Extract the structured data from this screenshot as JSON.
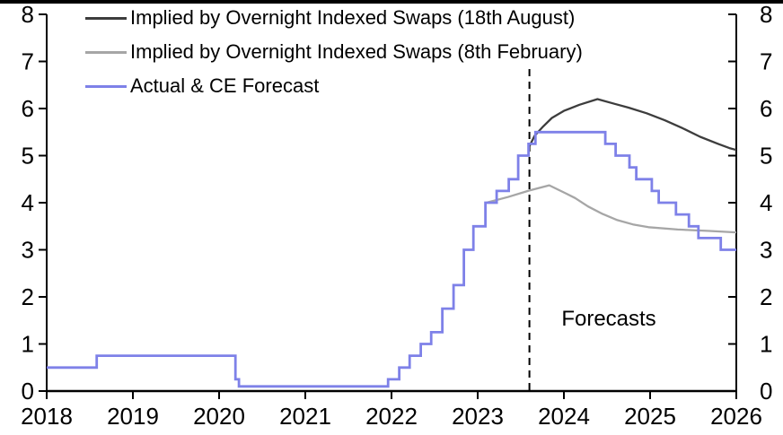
{
  "chart_data": {
    "type": "line",
    "title": "",
    "xlabel": "",
    "ylabel": "",
    "xlim": [
      2018,
      2026
    ],
    "ylim": [
      0,
      8
    ],
    "x_ticks": [
      2018,
      2019,
      2020,
      2021,
      2022,
      2023,
      2024,
      2025,
      2026
    ],
    "y_ticks": [
      0,
      1,
      2,
      3,
      4,
      5,
      6,
      7,
      8
    ],
    "y_axis_sides": "both",
    "grid": false,
    "legend_position": "top-left",
    "axis_color": "#000000",
    "background_color": "#ffffff",
    "annotations": {
      "forecast_label": "Forecasts",
      "forecast_divider_x": 2023.6
    },
    "series": [
      {
        "id": "ois-18-august",
        "name": "Implied by Overnight Indexed Swaps (18th August)",
        "color": "#3d3d3d",
        "line_style": "line",
        "points": [
          [
            2023.6,
            5.2
          ],
          [
            2023.66,
            5.42
          ],
          [
            2023.76,
            5.62
          ],
          [
            2023.86,
            5.8
          ],
          [
            2024.0,
            5.95
          ],
          [
            2024.18,
            6.08
          ],
          [
            2024.39,
            6.2
          ],
          [
            2024.59,
            6.1
          ],
          [
            2024.75,
            6.02
          ],
          [
            2024.96,
            5.9
          ],
          [
            2025.17,
            5.75
          ],
          [
            2025.38,
            5.58
          ],
          [
            2025.58,
            5.4
          ],
          [
            2025.79,
            5.25
          ],
          [
            2025.92,
            5.16
          ],
          [
            2026.0,
            5.12
          ]
        ]
      },
      {
        "id": "ois-8-february",
        "name": "Implied by Overnight Indexed Swaps (8th February)",
        "color": "#a6a6a6",
        "line_style": "line",
        "points": [
          [
            2023.1,
            4.0
          ],
          [
            2023.35,
            4.12
          ],
          [
            2023.6,
            4.26
          ],
          [
            2023.83,
            4.37
          ],
          [
            2024.02,
            4.2
          ],
          [
            2024.13,
            4.1
          ],
          [
            2024.28,
            3.92
          ],
          [
            2024.45,
            3.76
          ],
          [
            2024.62,
            3.63
          ],
          [
            2024.8,
            3.54
          ],
          [
            2024.98,
            3.48
          ],
          [
            2025.32,
            3.43
          ],
          [
            2025.69,
            3.4
          ],
          [
            2026.0,
            3.37
          ]
        ]
      },
      {
        "id": "actual-ce-forecast",
        "name": "Actual & CE Forecast",
        "color": "#7e81e8",
        "line_style": "step",
        "points": [
          [
            2018.0,
            0.5
          ],
          [
            2018.58,
            0.75
          ],
          [
            2020.19,
            0.25
          ],
          [
            2020.23,
            0.1
          ],
          [
            2021.96,
            0.25
          ],
          [
            2022.09,
            0.5
          ],
          [
            2022.21,
            0.75
          ],
          [
            2022.34,
            1.0
          ],
          [
            2022.46,
            1.25
          ],
          [
            2022.59,
            1.75
          ],
          [
            2022.72,
            2.25
          ],
          [
            2022.84,
            3.0
          ],
          [
            2022.95,
            3.5
          ],
          [
            2023.09,
            4.0
          ],
          [
            2023.22,
            4.25
          ],
          [
            2023.36,
            4.5
          ],
          [
            2023.47,
            5.0
          ],
          [
            2023.59,
            5.25
          ],
          [
            2023.67,
            5.5
          ],
          [
            2024.48,
            5.25
          ],
          [
            2024.6,
            5.0
          ],
          [
            2024.76,
            4.75
          ],
          [
            2024.84,
            4.5
          ],
          [
            2025.02,
            4.25
          ],
          [
            2025.1,
            4.0
          ],
          [
            2025.3,
            3.75
          ],
          [
            2025.45,
            3.5
          ],
          [
            2025.56,
            3.25
          ],
          [
            2025.82,
            3.0
          ],
          [
            2026.0,
            3.0
          ]
        ]
      }
    ]
  }
}
